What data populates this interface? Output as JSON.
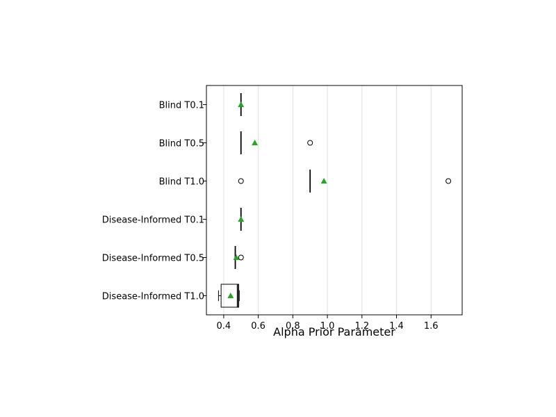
{
  "chart_data": {
    "type": "boxplot",
    "orientation": "horizontal",
    "xlabel": "Alpha Prior Parameter",
    "xlim": [
      0.3,
      1.78
    ],
    "xticks": [
      0.4,
      0.6,
      0.8,
      1.0,
      1.2,
      1.4,
      1.6
    ],
    "xtick_labels": [
      "0.4",
      "0.6",
      "0.8",
      "1.0",
      "1.2",
      "1.4",
      "1.6"
    ],
    "grid": "vertical",
    "mean_marker_color": "#2ca02c",
    "categories": [
      "Blind T0.1",
      "Blind T0.5",
      "Blind T1.0",
      "Disease-Informed T0.1",
      "Disease-Informed T0.5",
      "Disease-Informed T1.0"
    ],
    "boxes": [
      {
        "category": "Blind T0.1",
        "whisker_low": 0.5,
        "q1": 0.5,
        "median": 0.5,
        "q3": 0.5,
        "whisker_high": 0.5,
        "mean": 0.5,
        "outliers": []
      },
      {
        "category": "Blind T0.5",
        "whisker_low": 0.5,
        "q1": 0.5,
        "median": 0.5,
        "q3": 0.5,
        "whisker_high": 0.5,
        "mean": 0.58,
        "outliers": [
          0.9
        ]
      },
      {
        "category": "Blind T1.0",
        "whisker_low": 0.9,
        "q1": 0.9,
        "median": 0.9,
        "q3": 0.9,
        "whisker_high": 0.9,
        "mean": 0.98,
        "outliers": [
          0.5,
          1.7
        ]
      },
      {
        "category": "Disease-Informed T0.1",
        "whisker_low": 0.5,
        "q1": 0.5,
        "median": 0.5,
        "q3": 0.5,
        "whisker_high": 0.5,
        "mean": 0.5,
        "outliers": []
      },
      {
        "category": "Disease-Informed T0.5",
        "whisker_low": 0.467,
        "q1": 0.467,
        "median": 0.467,
        "q3": 0.467,
        "whisker_high": 0.467,
        "mean": 0.473,
        "outliers": [
          0.5
        ]
      },
      {
        "category": "Disease-Informed T1.0",
        "whisker_low": 0.37,
        "q1": 0.385,
        "median": 0.48,
        "q3": 0.487,
        "whisker_high": 0.49,
        "mean": 0.44,
        "outliers": []
      }
    ]
  }
}
